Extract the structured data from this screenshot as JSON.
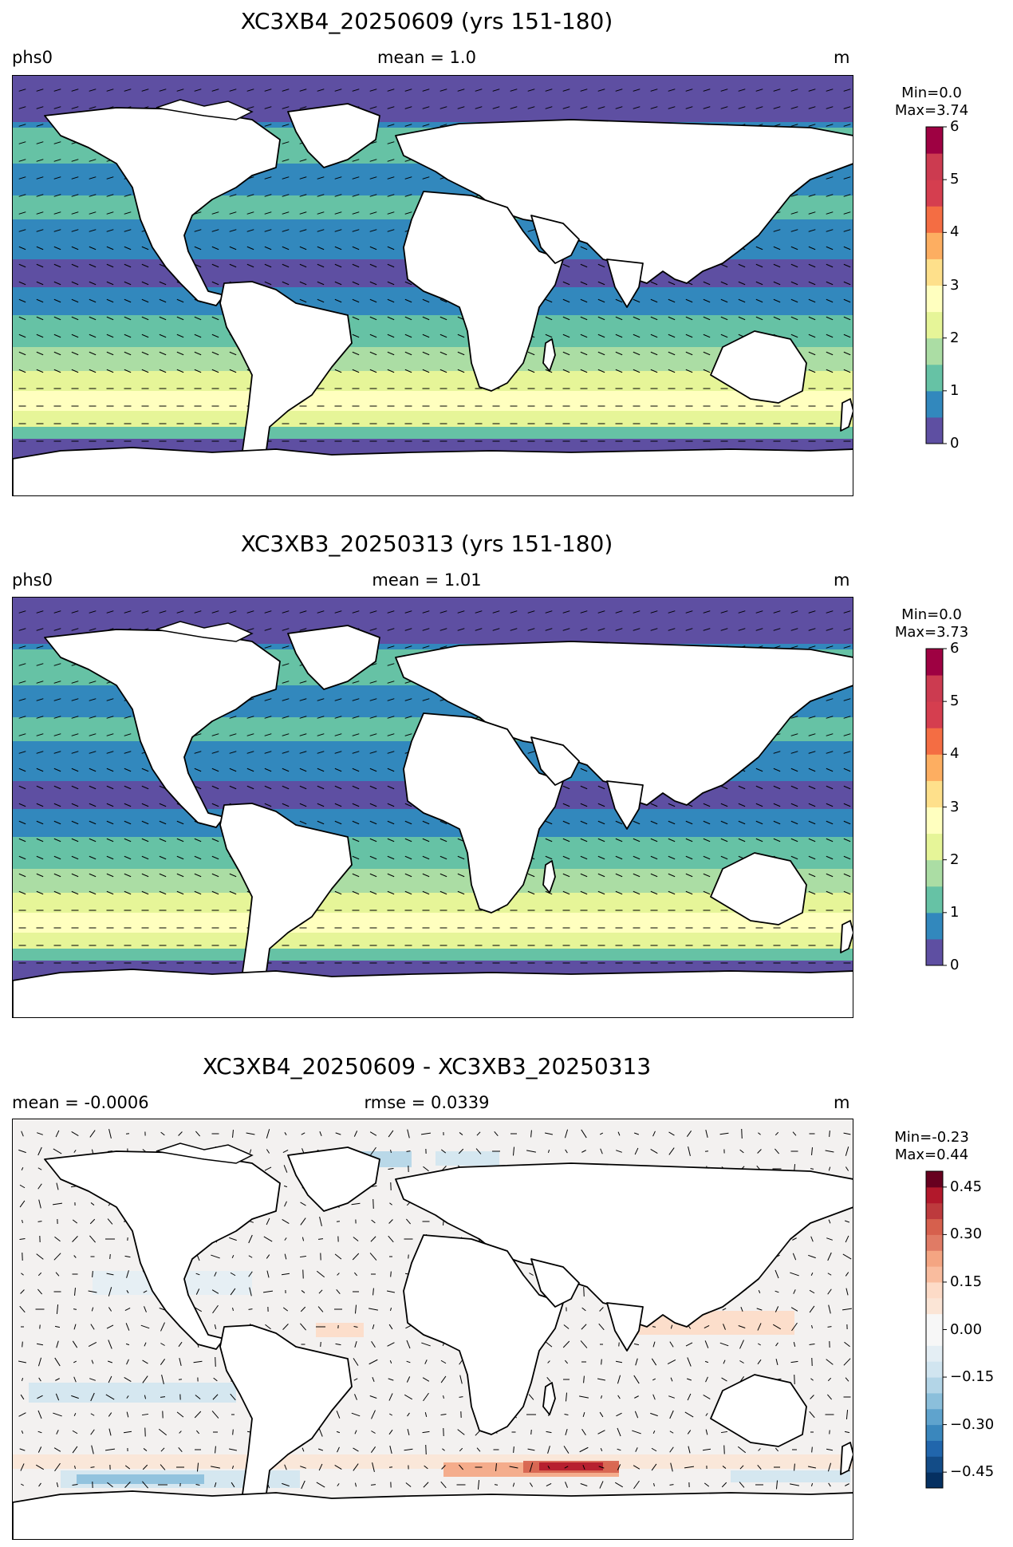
{
  "panels": [
    {
      "title": "XC3XB4_20250609 (yrs 151-180)",
      "left": "phs0",
      "center": "mean = 1.0",
      "right": "m",
      "min_label": "Min=0.0",
      "max_label": "Max=3.74",
      "colorbar": {
        "vmin": 0,
        "vmax": 6,
        "ticks": [
          "0",
          "1",
          "2",
          "3",
          "4",
          "5",
          "6"
        ],
        "colors": [
          "#5e4fa2",
          "#3288bd",
          "#66c2a5",
          "#abdda4",
          "#e6f598",
          "#ffffbf",
          "#fee08b",
          "#fdae61",
          "#f46d43",
          "#d53e4f",
          "#cc3b50",
          "#9e0142"
        ]
      }
    },
    {
      "title": "XC3XB3_20250313 (yrs 151-180)",
      "left": "phs0",
      "center": "mean = 1.01",
      "right": "m",
      "min_label": "Min=0.0",
      "max_label": "Max=3.73",
      "colorbar": {
        "vmin": 0,
        "vmax": 6,
        "ticks": [
          "0",
          "1",
          "2",
          "3",
          "4",
          "5",
          "6"
        ],
        "colors": [
          "#5e4fa2",
          "#3288bd",
          "#66c2a5",
          "#abdda4",
          "#e6f598",
          "#ffffbf",
          "#fee08b",
          "#fdae61",
          "#f46d43",
          "#d53e4f",
          "#cc3b50",
          "#9e0142"
        ]
      }
    },
    {
      "title": "XC3XB4_20250609 - XC3XB3_20250313",
      "left": "mean = -0.0006",
      "center": "rmse = 0.0339",
      "right": "m",
      "min_label": "Min=-0.23",
      "max_label": "Max=0.44",
      "colorbar": {
        "vmin": -0.5,
        "vmax": 0.5,
        "ticks": [
          "−0.45",
          "−0.30",
          "−0.15",
          "0.00",
          "0.15",
          "0.30",
          "0.45"
        ],
        "tick_values": [
          -0.45,
          -0.3,
          -0.15,
          0.0,
          0.15,
          0.3,
          0.45
        ],
        "colors": [
          "#053061",
          "#134c87",
          "#2166ac",
          "#3a87bd",
          "#5fa3cd",
          "#8bbfdb",
          "#b3d5e7",
          "#d1e5f0",
          "#e4eef4",
          "#f7f7f7",
          "#f7f7f7",
          "#fbe5d6",
          "#fddbc7",
          "#f9bc9e",
          "#f4a582",
          "#e07b65",
          "#d6604d",
          "#bd3a3d",
          "#b2182b",
          "#67001f"
        ]
      }
    }
  ]
}
